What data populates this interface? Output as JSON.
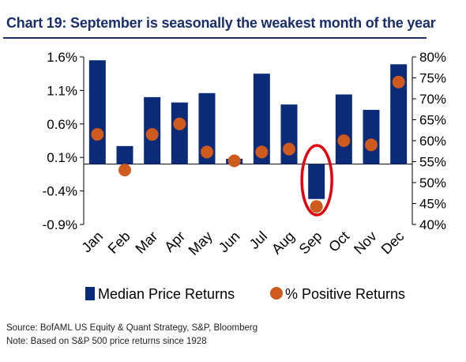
{
  "chart_data": {
    "type": "bar",
    "title": "Chart 19: September is seasonally the weakest month of the year",
    "categories": [
      "Jan",
      "Feb",
      "Mar",
      "Apr",
      "May",
      "Jun",
      "Jul",
      "Aug",
      "Sep",
      "Oct",
      "Nov",
      "Dec"
    ],
    "series": [
      {
        "name": "Median Price Returns",
        "type": "bar",
        "axis": "left",
        "values": [
          1.55,
          0.27,
          1.0,
          0.92,
          1.06,
          0.08,
          1.35,
          0.89,
          -0.52,
          1.04,
          0.81,
          1.49
        ]
      },
      {
        "name": "% Positive Returns",
        "type": "scatter",
        "axis": "right",
        "values": [
          61.5,
          53.0,
          61.5,
          64.0,
          57.3,
          55.2,
          57.3,
          58.0,
          44.3,
          60.0,
          59.0,
          74.0
        ]
      }
    ],
    "y_left": {
      "ylim": [
        -0.9,
        1.6
      ],
      "ticks": [
        "1.6%",
        "1.1%",
        "0.6%",
        "0.1%",
        "-0.4%",
        "-0.9%"
      ],
      "tick_values": [
        1.6,
        1.1,
        0.6,
        0.1,
        -0.4,
        -0.9
      ]
    },
    "y_right": {
      "ylim": [
        40,
        80
      ],
      "ticks": [
        "80%",
        "75%",
        "70%",
        "65%",
        "60%",
        "55%",
        "50%",
        "45%",
        "40%"
      ],
      "tick_values": [
        80,
        75,
        70,
        65,
        60,
        55,
        50,
        45,
        40
      ]
    },
    "highlight": {
      "category": "Sep",
      "shape": "ellipse",
      "color": "#e3000f"
    },
    "legend_position": "bottom",
    "grid": false,
    "colors": {
      "bar": "#0b2a78",
      "dot": "#cf5a1e",
      "title": "#1a2e6c"
    }
  },
  "source_note": "Source: BofAML US Equity & Quant Strategy, S&P, Bloomberg",
  "note": "Note: Based on S&P 500 price returns since 1928"
}
